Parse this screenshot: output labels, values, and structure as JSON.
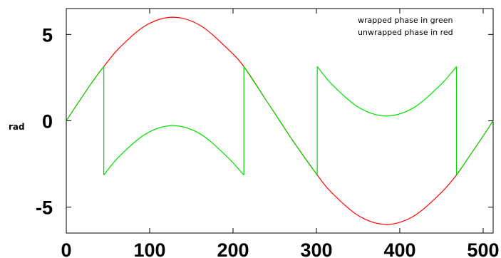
{
  "chart_data": {
    "type": "line",
    "title": "",
    "xlabel": "",
    "ylabel": "rad",
    "xlim": [
      0,
      512
    ],
    "ylim": [
      -6.5,
      6.5
    ],
    "x_ticks": [
      0,
      100,
      200,
      300,
      400,
      500
    ],
    "y_ticks": [
      5,
      0,
      -5
    ],
    "annotations": [
      "wrapped phase in green",
      "unwrapped phase in red"
    ],
    "grid": false,
    "series": [
      {
        "color": "#ff0000",
        "x": [
          0,
          16,
          32,
          45,
          64,
          96,
          128,
          160,
          192,
          213,
          240,
          256,
          272,
          301,
          320,
          352,
          384,
          416,
          448,
          468,
          480,
          496,
          512
        ],
        "values": [
          0,
          1.17,
          2.3,
          3.14,
          4.24,
          5.54,
          6.0,
          5.54,
          4.24,
          3.14,
          1.17,
          0,
          -1.17,
          -3.14,
          -4.24,
          -5.54,
          -6.0,
          -5.54,
          -4.24,
          -3.14,
          -2.3,
          -1.17,
          0
        ]
      },
      {
        "color": "#00e000",
        "x": [
          0,
          16,
          32,
          45,
          45,
          64,
          96,
          128,
          160,
          192,
          213,
          213,
          240,
          256,
          272,
          301,
          301,
          320,
          352,
          384,
          416,
          448,
          468,
          468,
          480,
          496,
          512
        ],
        "values": [
          0,
          1.17,
          2.3,
          3.14,
          -3.14,
          -2.04,
          -0.74,
          -0.28,
          -0.74,
          -2.04,
          -3.14,
          3.14,
          1.17,
          0,
          -1.17,
          -3.14,
          3.14,
          2.04,
          0.74,
          0.28,
          0.74,
          2.04,
          3.14,
          -3.14,
          -2.3,
          -1.17,
          0
        ]
      }
    ]
  }
}
